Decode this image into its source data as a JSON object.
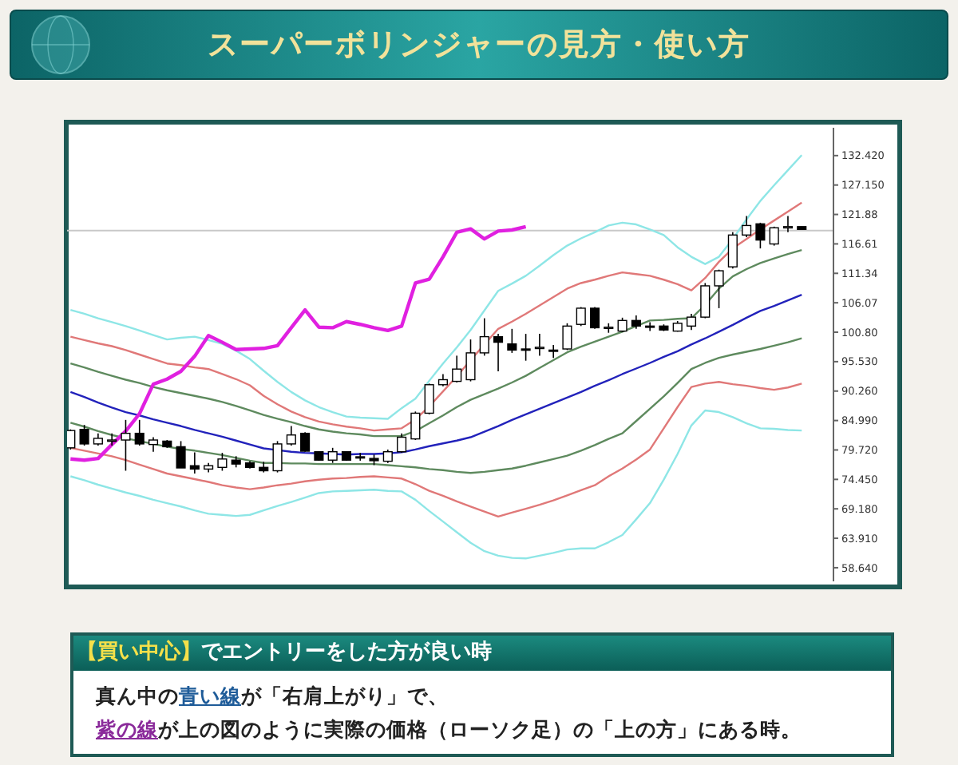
{
  "chart_data": {
    "type": "candlestick",
    "title": "スーパーボリンジャーの見方・使い方",
    "categories": [
      null,
      null,
      null,
      null,
      null,
      null,
      null,
      null,
      null,
      null,
      null,
      null,
      null,
      null,
      null,
      null,
      null,
      null,
      null,
      null,
      null,
      null,
      null,
      null,
      null,
      null,
      null,
      null,
      null,
      null,
      null,
      null,
      null,
      null,
      null,
      null,
      null,
      null,
      null,
      null,
      null,
      null,
      null,
      null,
      null,
      null,
      null,
      null,
      null,
      null,
      null,
      null,
      null,
      null
    ],
    "ohlc": [
      [
        80.1,
        83.4,
        79.8,
        83.2
      ],
      [
        83.4,
        84.2,
        80.5,
        80.8
      ],
      [
        80.8,
        82.7,
        80.5,
        81.8
      ],
      [
        81.4,
        82.7,
        80.5,
        81.5
      ],
      [
        81.5,
        85.1,
        76.0,
        82.7
      ],
      [
        82.7,
        85.1,
        80.5,
        80.8
      ],
      [
        80.7,
        82.0,
        79.4,
        81.5
      ],
      [
        81.3,
        81.5,
        80.1,
        80.3
      ],
      [
        80.3,
        81.3,
        76.5,
        76.5
      ],
      [
        76.9,
        79.3,
        75.5,
        76.3
      ],
      [
        76.3,
        77.4,
        75.7,
        76.9
      ],
      [
        76.6,
        79.2,
        76.0,
        78.1
      ],
      [
        77.9,
        78.6,
        76.6,
        77.2
      ],
      [
        77.4,
        77.7,
        76.4,
        76.6
      ],
      [
        76.6,
        77.6,
        75.7,
        76.0
      ],
      [
        76.0,
        81.3,
        75.7,
        80.8
      ],
      [
        80.8,
        84.0,
        80.5,
        82.4
      ],
      [
        82.7,
        82.9,
        79.4,
        79.5
      ],
      [
        79.4,
        79.5,
        77.8,
        77.9
      ],
      [
        77.9,
        80.1,
        77.4,
        79.4
      ],
      [
        79.4,
        79.5,
        77.8,
        77.9
      ],
      [
        78.5,
        79.2,
        77.8,
        78.4
      ],
      [
        78.2,
        78.9,
        77.0,
        77.8
      ],
      [
        77.7,
        79.8,
        77.4,
        79.4
      ],
      [
        79.4,
        82.7,
        79.2,
        82.0
      ],
      [
        81.7,
        86.6,
        81.5,
        86.3
      ],
      [
        86.3,
        91.6,
        86.1,
        91.4
      ],
      [
        91.4,
        93.3,
        91.1,
        92.3
      ],
      [
        92.0,
        96.6,
        91.8,
        94.2
      ],
      [
        92.3,
        99.5,
        92.0,
        97.1
      ],
      [
        97.1,
        103.3,
        96.6,
        100.0
      ],
      [
        100.0,
        100.5,
        93.8,
        99.0
      ],
      [
        98.7,
        101.4,
        97.1,
        97.6
      ],
      [
        97.8,
        100.5,
        95.7,
        97.7
      ],
      [
        98.0,
        100.5,
        96.6,
        98.1
      ],
      [
        97.6,
        98.5,
        96.2,
        97.5
      ],
      [
        97.8,
        102.4,
        97.6,
        101.9
      ],
      [
        102.2,
        105.3,
        101.9,
        105.1
      ],
      [
        105.1,
        105.3,
        101.4,
        101.6
      ],
      [
        101.6,
        102.4,
        100.7,
        101.7
      ],
      [
        101.0,
        103.4,
        100.8,
        102.9
      ],
      [
        102.9,
        103.8,
        101.4,
        101.9
      ],
      [
        101.9,
        102.6,
        101.0,
        101.8
      ],
      [
        101.9,
        102.2,
        101.0,
        101.2
      ],
      [
        101.0,
        102.8,
        100.9,
        102.4
      ],
      [
        101.9,
        104.1,
        101.2,
        103.5
      ],
      [
        103.5,
        109.6,
        103.3,
        109.1
      ],
      [
        109.1,
        112.0,
        105.1,
        111.8
      ],
      [
        112.5,
        118.7,
        112.2,
        118.2
      ],
      [
        118.2,
        121.6,
        117.8,
        119.9
      ],
      [
        120.2,
        120.4,
        115.8,
        117.3
      ],
      [
        116.6,
        119.7,
        116.3,
        119.5
      ],
      [
        119.6,
        121.6,
        118.7,
        119.7
      ],
      [
        119.7,
        119.7,
        119.2,
        119.2
      ]
    ],
    "series": [
      {
        "type": "line",
        "color": "#8ee6e6",
        "values": [
          104.8,
          104.1,
          103.3,
          102.6,
          101.9,
          101.1,
          100.3,
          99.5,
          99.8,
          100.0,
          99.4,
          98.7,
          97.5,
          96.0,
          93.9,
          91.9,
          90.1,
          88.6,
          87.4,
          86.5,
          85.7,
          85.5,
          85.4,
          85.3,
          87.2,
          88.9,
          92.1,
          95.2,
          98.1,
          101.2,
          104.7,
          108.2,
          109.5,
          110.9,
          112.7,
          114.6,
          116.3,
          117.6,
          118.7,
          119.9,
          120.4,
          120.1,
          119.2,
          118.2,
          116.0,
          114.3,
          113.0,
          114.3,
          117.5,
          121.0,
          124.3,
          127.1,
          129.8,
          132.5
        ]
      },
      {
        "type": "line",
        "color": "#e07878",
        "values": [
          100.0,
          99.4,
          98.8,
          98.3,
          97.6,
          96.8,
          96.0,
          95.2,
          94.9,
          94.5,
          94.2,
          93.3,
          92.4,
          91.3,
          89.4,
          87.9,
          86.6,
          85.6,
          84.8,
          84.3,
          83.9,
          83.6,
          83.2,
          83.4,
          83.6,
          85.2,
          87.5,
          90.2,
          92.9,
          95.8,
          98.6,
          101.4,
          102.7,
          104.1,
          105.6,
          107.1,
          108.6,
          109.6,
          110.2,
          110.9,
          111.5,
          111.2,
          110.9,
          110.2,
          109.4,
          108.3,
          110.5,
          113.4,
          115.8,
          117.5,
          119.2,
          120.8,
          122.4,
          124.0
        ]
      },
      {
        "type": "line",
        "color": "#5e8a5e",
        "values": [
          95.2,
          94.5,
          93.7,
          93.0,
          92.3,
          91.7,
          91.0,
          90.4,
          89.9,
          89.4,
          88.9,
          88.3,
          87.6,
          86.8,
          86.0,
          85.3,
          84.7,
          84.0,
          83.4,
          83.0,
          82.7,
          82.5,
          82.2,
          82.2,
          82.2,
          83.1,
          84.5,
          85.9,
          87.4,
          88.7,
          89.7,
          90.7,
          91.8,
          93.0,
          94.4,
          95.8,
          97.2,
          98.2,
          99.1,
          100.0,
          100.9,
          101.9,
          102.9,
          103.0,
          103.2,
          103.3,
          105.7,
          108.6,
          110.8,
          112.1,
          113.2,
          114.0,
          114.8,
          115.5
        ]
      },
      {
        "type": "line",
        "color": "#2222bb",
        "values": [
          90.1,
          89.2,
          88.2,
          87.3,
          86.5,
          85.9,
          85.2,
          84.6,
          84.0,
          83.3,
          82.7,
          82.1,
          81.4,
          80.7,
          80.0,
          79.7,
          79.4,
          79.2,
          79.1,
          79.0,
          78.9,
          79.0,
          79.0,
          79.1,
          79.3,
          79.8,
          80.4,
          80.9,
          81.4,
          82.0,
          83.0,
          84.0,
          85.1,
          86.1,
          87.1,
          88.1,
          89.1,
          90.1,
          91.2,
          92.2,
          93.3,
          94.3,
          95.3,
          96.4,
          97.4,
          98.6,
          99.7,
          100.9,
          102.1,
          103.4,
          104.6,
          105.5,
          106.5,
          107.5
        ]
      },
      {
        "type": "line",
        "color": "#5e8a5e",
        "values": [
          84.6,
          83.9,
          83.1,
          82.4,
          81.8,
          81.3,
          80.8,
          80.3,
          79.9,
          79.6,
          79.2,
          78.8,
          78.3,
          77.8,
          77.4,
          77.4,
          77.3,
          77.3,
          77.2,
          77.2,
          77.2,
          77.2,
          77.2,
          77.0,
          76.8,
          76.6,
          76.3,
          76.1,
          75.8,
          75.6,
          75.8,
          76.1,
          76.4,
          76.9,
          77.5,
          78.1,
          78.7,
          79.6,
          80.6,
          81.7,
          82.7,
          84.9,
          87.1,
          89.3,
          91.7,
          94.2,
          95.3,
          96.2,
          96.8,
          97.3,
          97.8,
          98.4,
          99.0,
          99.7
        ]
      },
      {
        "type": "line",
        "color": "#e07878",
        "values": [
          80.1,
          79.6,
          79.1,
          78.6,
          77.9,
          77.1,
          76.3,
          75.5,
          75.0,
          74.5,
          74.0,
          73.4,
          73.0,
          72.7,
          73.0,
          73.4,
          73.7,
          74.1,
          74.4,
          74.6,
          74.7,
          74.9,
          75.0,
          74.8,
          74.6,
          73.6,
          72.4,
          71.5,
          70.5,
          69.6,
          68.7,
          67.8,
          68.5,
          69.2,
          69.9,
          70.7,
          71.6,
          72.5,
          73.4,
          75.0,
          76.4,
          78.0,
          79.8,
          83.6,
          87.4,
          91.0,
          91.6,
          91.9,
          91.5,
          91.2,
          90.8,
          90.5,
          90.9,
          91.6
        ]
      },
      {
        "type": "line",
        "color": "#8ee6e6",
        "values": [
          75.0,
          74.3,
          73.5,
          72.8,
          72.1,
          71.5,
          70.8,
          70.2,
          69.6,
          68.9,
          68.3,
          68.1,
          67.9,
          68.1,
          68.9,
          69.7,
          70.4,
          71.2,
          72.0,
          72.3,
          72.4,
          72.5,
          72.6,
          72.4,
          72.3,
          70.8,
          68.8,
          66.9,
          65.0,
          63.1,
          61.6,
          60.8,
          60.4,
          60.3,
          60.8,
          61.3,
          61.9,
          62.1,
          62.1,
          63.2,
          64.5,
          67.3,
          70.2,
          74.4,
          79.0,
          84.1,
          86.8,
          86.5,
          85.6,
          84.5,
          83.6,
          83.5,
          83.3,
          83.2
        ]
      },
      {
        "type": "line",
        "color": "#e020e0",
        "values": [
          78.1,
          77.9,
          78.2,
          80.7,
          83.1,
          86.2,
          91.5,
          92.4,
          93.8,
          96.5,
          100.2,
          99.0,
          97.7,
          97.8,
          97.9,
          98.4,
          101.6,
          104.8,
          101.7,
          101.6,
          102.7,
          102.2,
          101.6,
          101.1,
          101.9,
          109.6,
          110.3,
          114.3,
          118.7,
          119.3,
          117.5,
          118.9,
          119.1,
          119.7,
          null,
          null,
          null,
          null,
          null,
          null,
          null,
          null,
          null,
          null,
          null,
          null,
          null,
          null,
          null,
          null,
          null,
          null,
          null,
          null
        ]
      }
    ],
    "ylim": [
      56.2,
      137.4
    ],
    "yticks": [
      {
        "value": 132.42,
        "label": "132.420"
      },
      {
        "value": 127.15,
        "label": "127.150"
      },
      {
        "value": 121.88,
        "label": "121.88"
      },
      {
        "value": 116.61,
        "label": "116.61"
      },
      {
        "value": 111.34,
        "label": "111.34"
      },
      {
        "value": 106.07,
        "label": "106.07"
      },
      {
        "value": 100.8,
        "label": "100.80"
      },
      {
        "value": 95.53,
        "label": "95.530"
      },
      {
        "value": 90.26,
        "label": "90.260"
      },
      {
        "value": 84.99,
        "label": "84.990"
      },
      {
        "value": 79.72,
        "label": "79.720"
      },
      {
        "value": 74.45,
        "label": "74.450"
      },
      {
        "value": 69.18,
        "label": "69.180"
      },
      {
        "value": 63.91,
        "label": "63.910"
      },
      {
        "value": 58.64,
        "label": "58.640"
      }
    ],
    "tick_labels": "y",
    "ref_lines": [
      {
        "axis": "y",
        "value": 119.0,
        "color": "#c8c8c8"
      }
    ],
    "annotations": [
      "【買い中心】",
      "でエントリーをした方が良い時",
      "真ん中の",
      "青い線",
      "が「右肩上がり」で、",
      "紫の線",
      "が上の図のように実際の価格（ローソク足）の「上の方」にある時。"
    ]
  }
}
